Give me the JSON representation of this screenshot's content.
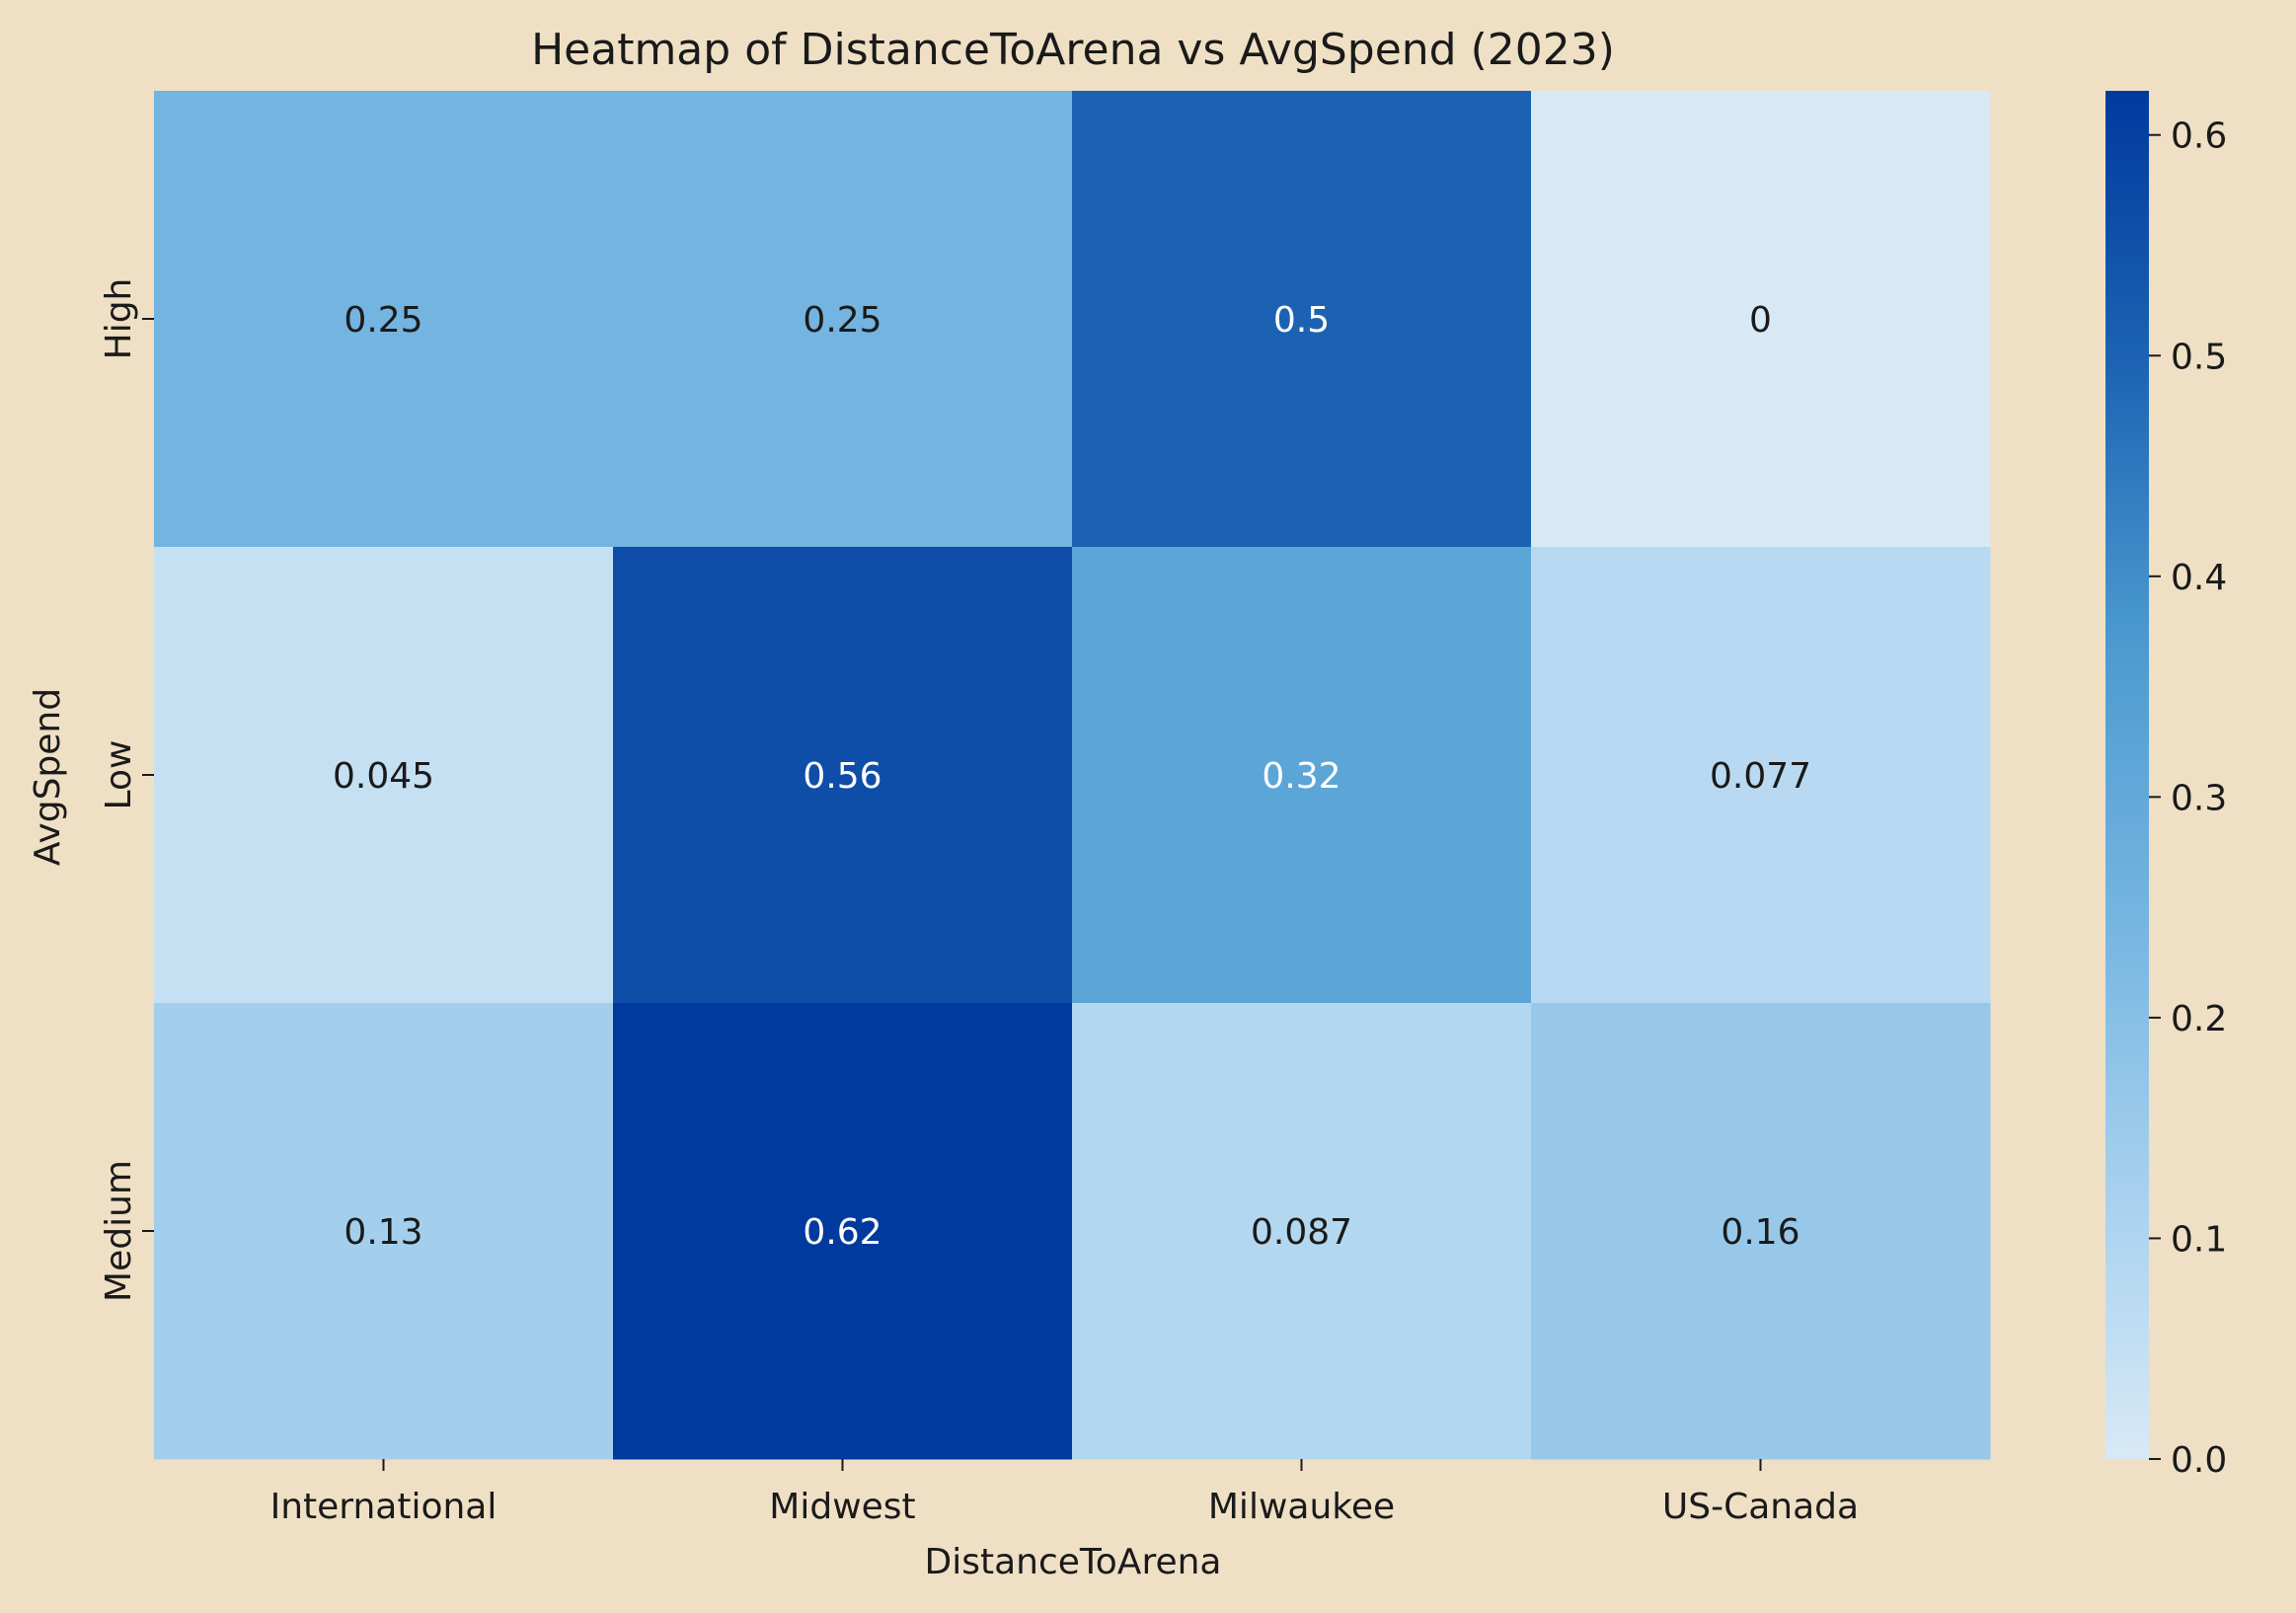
{
  "chart_data": {
    "type": "heatmap",
    "title": "Heatmap of DistanceToArena vs AvgSpend (2023)",
    "xlabel": "DistanceToArena",
    "ylabel": "AvgSpend",
    "x_categories": [
      "International",
      "Midwest",
      "Milwaukee",
      "US-Canada"
    ],
    "y_categories": [
      "High",
      "Low",
      "Medium"
    ],
    "values": [
      [
        0.25,
        0.25,
        0.5,
        0
      ],
      [
        0.045,
        0.56,
        0.32,
        0.077
      ],
      [
        0.13,
        0.62,
        0.087,
        0.16
      ]
    ],
    "value_labels": [
      [
        "0.25",
        "0.25",
        "0.5",
        "0"
      ],
      [
        "0.045",
        "0.56",
        "0.32",
        "0.077"
      ],
      [
        "0.13",
        "0.62",
        "0.087",
        "0.16"
      ]
    ],
    "colorbar": {
      "range": [
        0,
        0.62
      ],
      "ticks": [
        0.0,
        0.1,
        0.2,
        0.3,
        0.4,
        0.5,
        0.6
      ],
      "tick_labels": [
        "0.0",
        "0.1",
        "0.2",
        "0.3",
        "0.4",
        "0.5",
        "0.6"
      ]
    },
    "colormap": [
      "#d8e9f6",
      "#a5d0ee",
      "#74b4e0",
      "#4a9ad0",
      "#1c64b3",
      "#003a9f"
    ],
    "grid": false
  },
  "colors": {
    "background": "#efe0c5",
    "text_dark": "#1a1a1a",
    "text_light": "#ffffff"
  }
}
